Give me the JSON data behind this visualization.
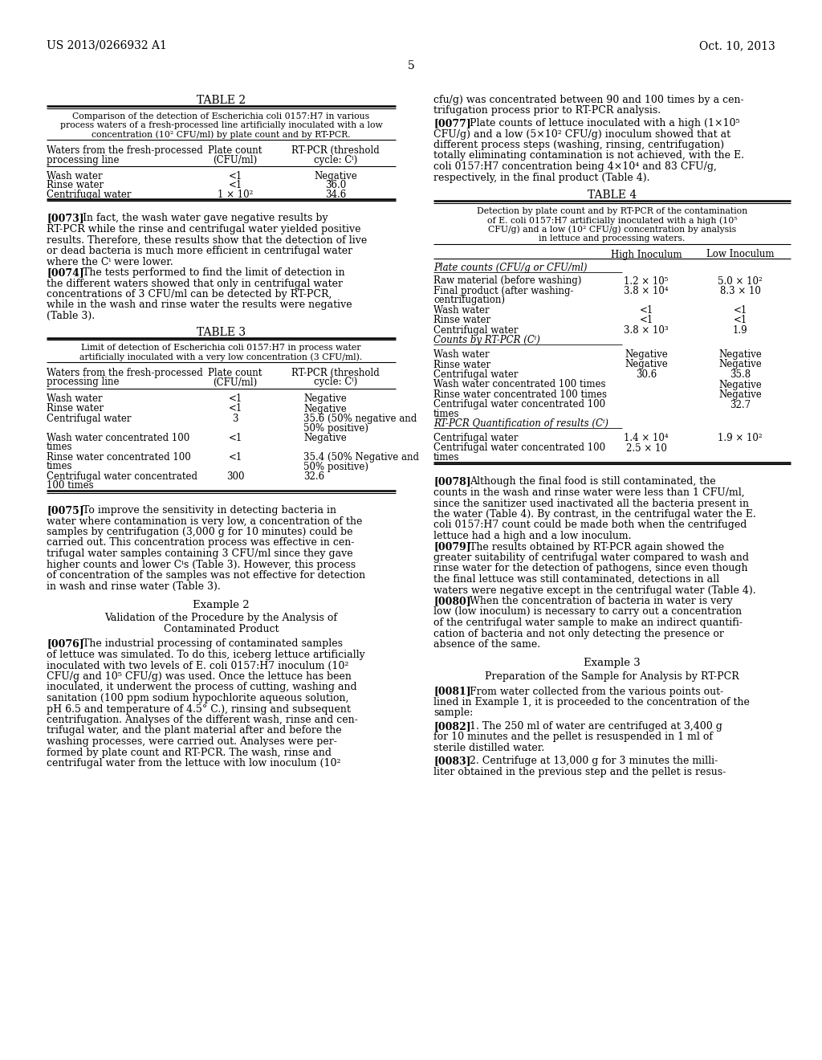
{
  "background_color": "#ffffff",
  "header_left": "US 2013/0266932 A1",
  "header_right": "Oct. 10, 2013",
  "page_number": "5"
}
